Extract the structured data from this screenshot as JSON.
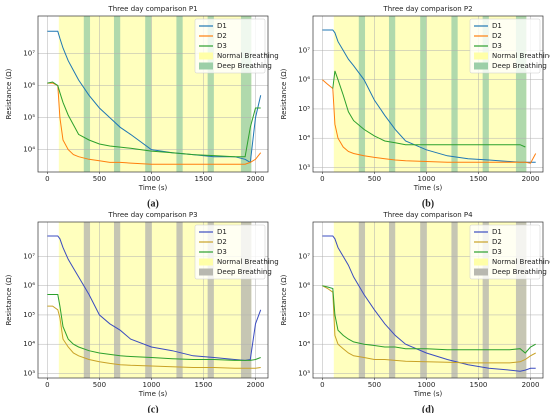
{
  "chart_data": [
    {
      "type": "line",
      "title": "Three day comparison P1",
      "caption": "(a)",
      "xlabel": "Time (s)",
      "ylabel": "Resistance (Ω)",
      "log_y": true,
      "legend": "upper right",
      "xlim": [
        -90,
        2120
      ],
      "xticks": [
        0,
        500,
        1000,
        1500,
        2000
      ],
      "ylim": [
        2000,
        150000000
      ],
      "yticks": [
        {
          "value": 10000,
          "label": "10⁴"
        },
        {
          "value": 100000,
          "label": "10⁵"
        },
        {
          "value": 1000000,
          "label": "10⁶"
        },
        {
          "value": 10000000,
          "label": "10⁷"
        }
      ],
      "x": [
        0,
        50,
        100,
        120,
        150,
        200,
        250,
        300,
        400,
        500,
        600,
        700,
        800,
        1000,
        1200,
        1400,
        1600,
        1800,
        1900,
        1950,
        2000,
        2050
      ],
      "series": [
        {
          "name": "D1",
          "color": "#1f77b4",
          "values": [
            50000000,
            50000000,
            50000000,
            30000000,
            15000000,
            6000000,
            3000000,
            1500000,
            500000,
            200000,
            100000,
            50000,
            30000,
            10000,
            8000,
            7000,
            6000,
            6000,
            5000,
            4000,
            100000,
            500000
          ]
        },
        {
          "name": "D2",
          "color": "#ff7f0e",
          "values": [
            1200000,
            1200000,
            1000000,
            100000,
            20000,
            10000,
            7000,
            6000,
            5000,
            4500,
            4000,
            4000,
            3800,
            3500,
            3500,
            3500,
            3500,
            3500,
            3500,
            4000,
            5000,
            8000
          ]
        },
        {
          "name": "D3",
          "color": "#2ca02c",
          "values": [
            1200000,
            1300000,
            1000000,
            600000,
            300000,
            120000,
            60000,
            30000,
            20000,
            15000,
            13000,
            12000,
            11000,
            9000,
            8000,
            7000,
            6500,
            6000,
            6000,
            50000,
            200000,
            200000
          ]
        }
      ],
      "spans": [
        {
          "name": "Normal Breathing",
          "color": "#ffffa8",
          "ranges": [
            [
              110,
              1960
            ]
          ]
        },
        {
          "name": "Deep Breathing",
          "color": "#9ccfa8",
          "ranges": [
            [
              350,
              410
            ],
            [
              640,
              700
            ],
            [
              940,
              1000
            ],
            [
              1240,
              1300
            ],
            [
              1540,
              1600
            ],
            [
              1860,
              1960
            ]
          ]
        }
      ]
    },
    {
      "type": "line",
      "title": "Three day comparison P2",
      "caption": "(b)",
      "xlabel": "Time (s)",
      "ylabel": "Resistance (Ω)",
      "log_y": true,
      "legend": "upper right",
      "xlim": [
        -90,
        2120
      ],
      "xticks": [
        0,
        500,
        1000,
        1500,
        2000
      ],
      "ylim": [
        700,
        150000000
      ],
      "yticks": [
        {
          "value": 1000,
          "label": "10³"
        },
        {
          "value": 10000,
          "label": "10⁴"
        },
        {
          "value": 100000,
          "label": "10⁵"
        },
        {
          "value": 1000000,
          "label": "10⁶"
        },
        {
          "value": 10000000,
          "label": "10⁷"
        }
      ],
      "x": [
        0,
        50,
        100,
        120,
        150,
        200,
        250,
        300,
        400,
        500,
        600,
        700,
        800,
        1000,
        1200,
        1400,
        1600,
        1800,
        1900,
        1950,
        2000,
        2050
      ],
      "series": [
        {
          "name": "D1",
          "color": "#1f77b4",
          "values": [
            50000000,
            50000000,
            50000000,
            40000000,
            20000000,
            10000000,
            5000000,
            3000000,
            1000000,
            200000,
            60000,
            20000,
            8000,
            4000,
            2500,
            2000,
            1800,
            1600,
            1500,
            1500,
            1500,
            1500
          ]
        },
        {
          "name": "D2",
          "color": "#ff7f0e",
          "values": [
            1000000,
            700000,
            500000,
            30000,
            10000,
            5000,
            3500,
            3000,
            2500,
            2200,
            2000,
            1800,
            1700,
            1600,
            1500,
            1500,
            1500,
            1500,
            1500,
            1500,
            1400,
            3000
          ]
        },
        {
          "name": "D3",
          "color": "#2ca02c",
          "values": [
            null,
            null,
            500000,
            2000000,
            1000000,
            300000,
            80000,
            40000,
            20000,
            12000,
            8000,
            7000,
            6000,
            6000,
            6000,
            6000,
            6000,
            6000,
            6000,
            5000,
            null,
            null
          ]
        }
      ],
      "spans": [
        {
          "name": "Normal Breathing",
          "color": "#ffffa8",
          "ranges": [
            [
              110,
              1960
            ]
          ]
        },
        {
          "name": "Deep Breathing",
          "color": "#9ccfa8",
          "ranges": [
            [
              350,
              410
            ],
            [
              640,
              700
            ],
            [
              940,
              1000
            ],
            [
              1240,
              1300
            ],
            [
              1540,
              1600
            ],
            [
              1860,
              1960
            ]
          ]
        }
      ]
    },
    {
      "type": "line",
      "title": "Three day comparison P3",
      "caption": "(c)",
      "xlabel": "Time (s)",
      "ylabel": "Resistance (Ω)",
      "log_y": true,
      "legend": "upper right",
      "xlim": [
        -90,
        2120
      ],
      "xticks": [
        0,
        500,
        1000,
        1500,
        2000
      ],
      "ylim": [
        700,
        150000000
      ],
      "yticks": [
        {
          "value": 1000,
          "label": "10³"
        },
        {
          "value": 10000,
          "label": "10⁴"
        },
        {
          "value": 100000,
          "label": "10⁵"
        },
        {
          "value": 1000000,
          "label": "10⁶"
        },
        {
          "value": 10000000,
          "label": "10⁷"
        }
      ],
      "x": [
        0,
        50,
        100,
        120,
        150,
        200,
        250,
        300,
        400,
        500,
        600,
        700,
        800,
        1000,
        1200,
        1400,
        1600,
        1800,
        1900,
        1950,
        2000,
        2050
      ],
      "series": [
        {
          "name": "D1",
          "color": "#3b4cc0",
          "values": [
            50000000,
            50000000,
            50000000,
            40000000,
            20000000,
            8000000,
            4000000,
            2000000,
            500000,
            100000,
            50000,
            30000,
            15000,
            8000,
            6000,
            4000,
            3500,
            3000,
            2800,
            3000,
            50000,
            150000
          ]
        },
        {
          "name": "D2",
          "color": "#c9a227",
          "values": [
            200000,
            200000,
            150000,
            80000,
            15000,
            8000,
            5000,
            4000,
            3000,
            2500,
            2200,
            2000,
            1900,
            1800,
            1700,
            1600,
            1600,
            1500,
            1500,
            1500,
            1500,
            1600
          ]
        },
        {
          "name": "D3",
          "color": "#2ca02c",
          "values": [
            500000,
            500000,
            500000,
            200000,
            40000,
            15000,
            10000,
            8000,
            6000,
            5000,
            4500,
            4000,
            3800,
            3500,
            3200,
            3000,
            3000,
            2800,
            2800,
            2800,
            3000,
            3500
          ]
        }
      ],
      "spans": [
        {
          "name": "Normal Breathing",
          "color": "#ffffa8",
          "ranges": [
            [
              110,
              1960
            ]
          ]
        },
        {
          "name": "Deep Breathing",
          "color": "#b8b8b0",
          "ranges": [
            [
              350,
              410
            ],
            [
              640,
              700
            ],
            [
              940,
              1000
            ],
            [
              1240,
              1300
            ],
            [
              1540,
              1600
            ],
            [
              1860,
              1960
            ]
          ]
        }
      ]
    },
    {
      "type": "line",
      "title": "Three day comparison P4",
      "caption": "(d)",
      "xlabel": "Time (s)",
      "ylabel": "Resistance (Ω)",
      "log_y": true,
      "legend": "upper right",
      "xlim": [
        -90,
        2120
      ],
      "xticks": [
        0,
        500,
        1000,
        1500,
        2000
      ],
      "ylim": [
        700,
        150000000
      ],
      "yticks": [
        {
          "value": 1000,
          "label": "10³"
        },
        {
          "value": 10000,
          "label": "10⁴"
        },
        {
          "value": 100000,
          "label": "10⁵"
        },
        {
          "value": 1000000,
          "label": "10⁶"
        },
        {
          "value": 10000000,
          "label": "10⁷"
        }
      ],
      "x": [
        0,
        50,
        100,
        120,
        150,
        200,
        250,
        300,
        400,
        500,
        600,
        700,
        800,
        1000,
        1200,
        1400,
        1600,
        1800,
        1900,
        1950,
        2000,
        2050
      ],
      "series": [
        {
          "name": "D1",
          "color": "#3b4cc0",
          "values": [
            50000000,
            50000000,
            50000000,
            40000000,
            20000000,
            10000000,
            5000000,
            2000000,
            500000,
            150000,
            50000,
            20000,
            10000,
            5000,
            3000,
            2000,
            1500,
            1300,
            1200,
            1300,
            1500,
            1500
          ]
        },
        {
          "name": "D2",
          "color": "#c9a227",
          "values": [
            1000000,
            800000,
            600000,
            20000,
            10000,
            7000,
            5000,
            4000,
            3500,
            3000,
            3000,
            2800,
            2600,
            2500,
            2400,
            2300,
            2300,
            2300,
            2500,
            3000,
            4000,
            5000
          ]
        },
        {
          "name": "D3",
          "color": "#2ca02c",
          "values": [
            1000000,
            900000,
            800000,
            100000,
            30000,
            20000,
            15000,
            12000,
            10000,
            9000,
            8000,
            8000,
            7000,
            7000,
            6500,
            6500,
            6500,
            6500,
            7000,
            5000,
            8000,
            10000
          ]
        }
      ],
      "spans": [
        {
          "name": "Normal Breathing",
          "color": "#ffffa8",
          "ranges": [
            [
              110,
              1960
            ]
          ]
        },
        {
          "name": "Deep Breathing",
          "color": "#b8b8b0",
          "ranges": [
            [
              350,
              410
            ],
            [
              640,
              700
            ],
            [
              940,
              1000
            ],
            [
              1240,
              1300
            ],
            [
              1540,
              1600
            ],
            [
              1860,
              1960
            ]
          ]
        }
      ]
    }
  ]
}
